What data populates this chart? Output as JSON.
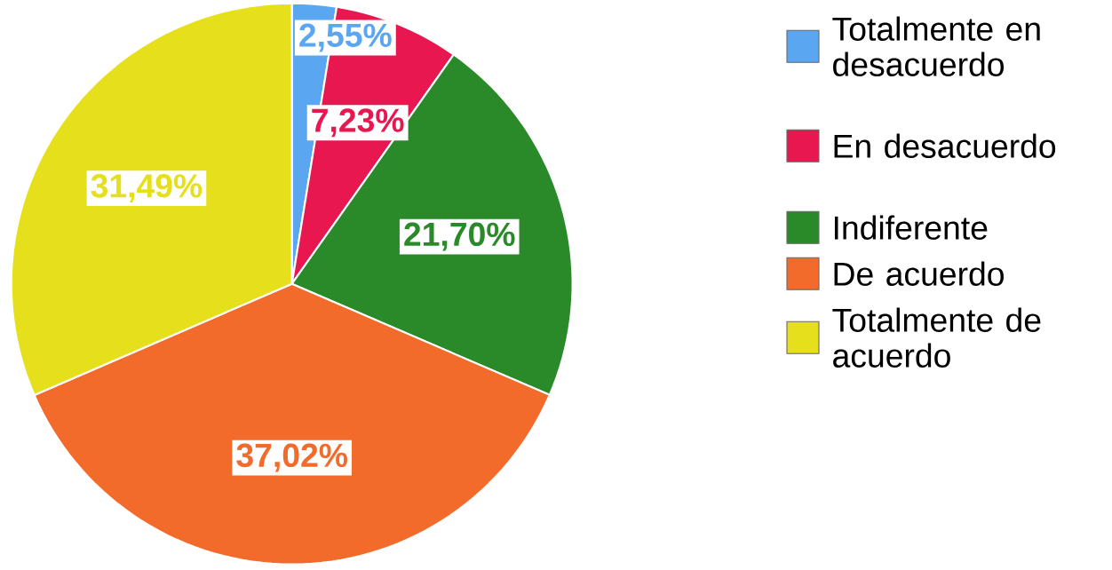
{
  "chart_data": {
    "type": "pie",
    "categories": [
      "Totalmente en desacuerdo",
      "En desacuerdo",
      "Indiferente",
      "De acuerdo",
      "Totalmente de acuerdo"
    ],
    "values": [
      2.55,
      7.23,
      21.7,
      37.02,
      31.49
    ],
    "value_labels": [
      "2,55%",
      "7,23%",
      "21,70%",
      "37,02%",
      "31,49%"
    ],
    "colors": [
      "#5aa6f0",
      "#e8174f",
      "#2a8a2a",
      "#f26b2a",
      "#e6e01c"
    ],
    "legend": "right"
  }
}
